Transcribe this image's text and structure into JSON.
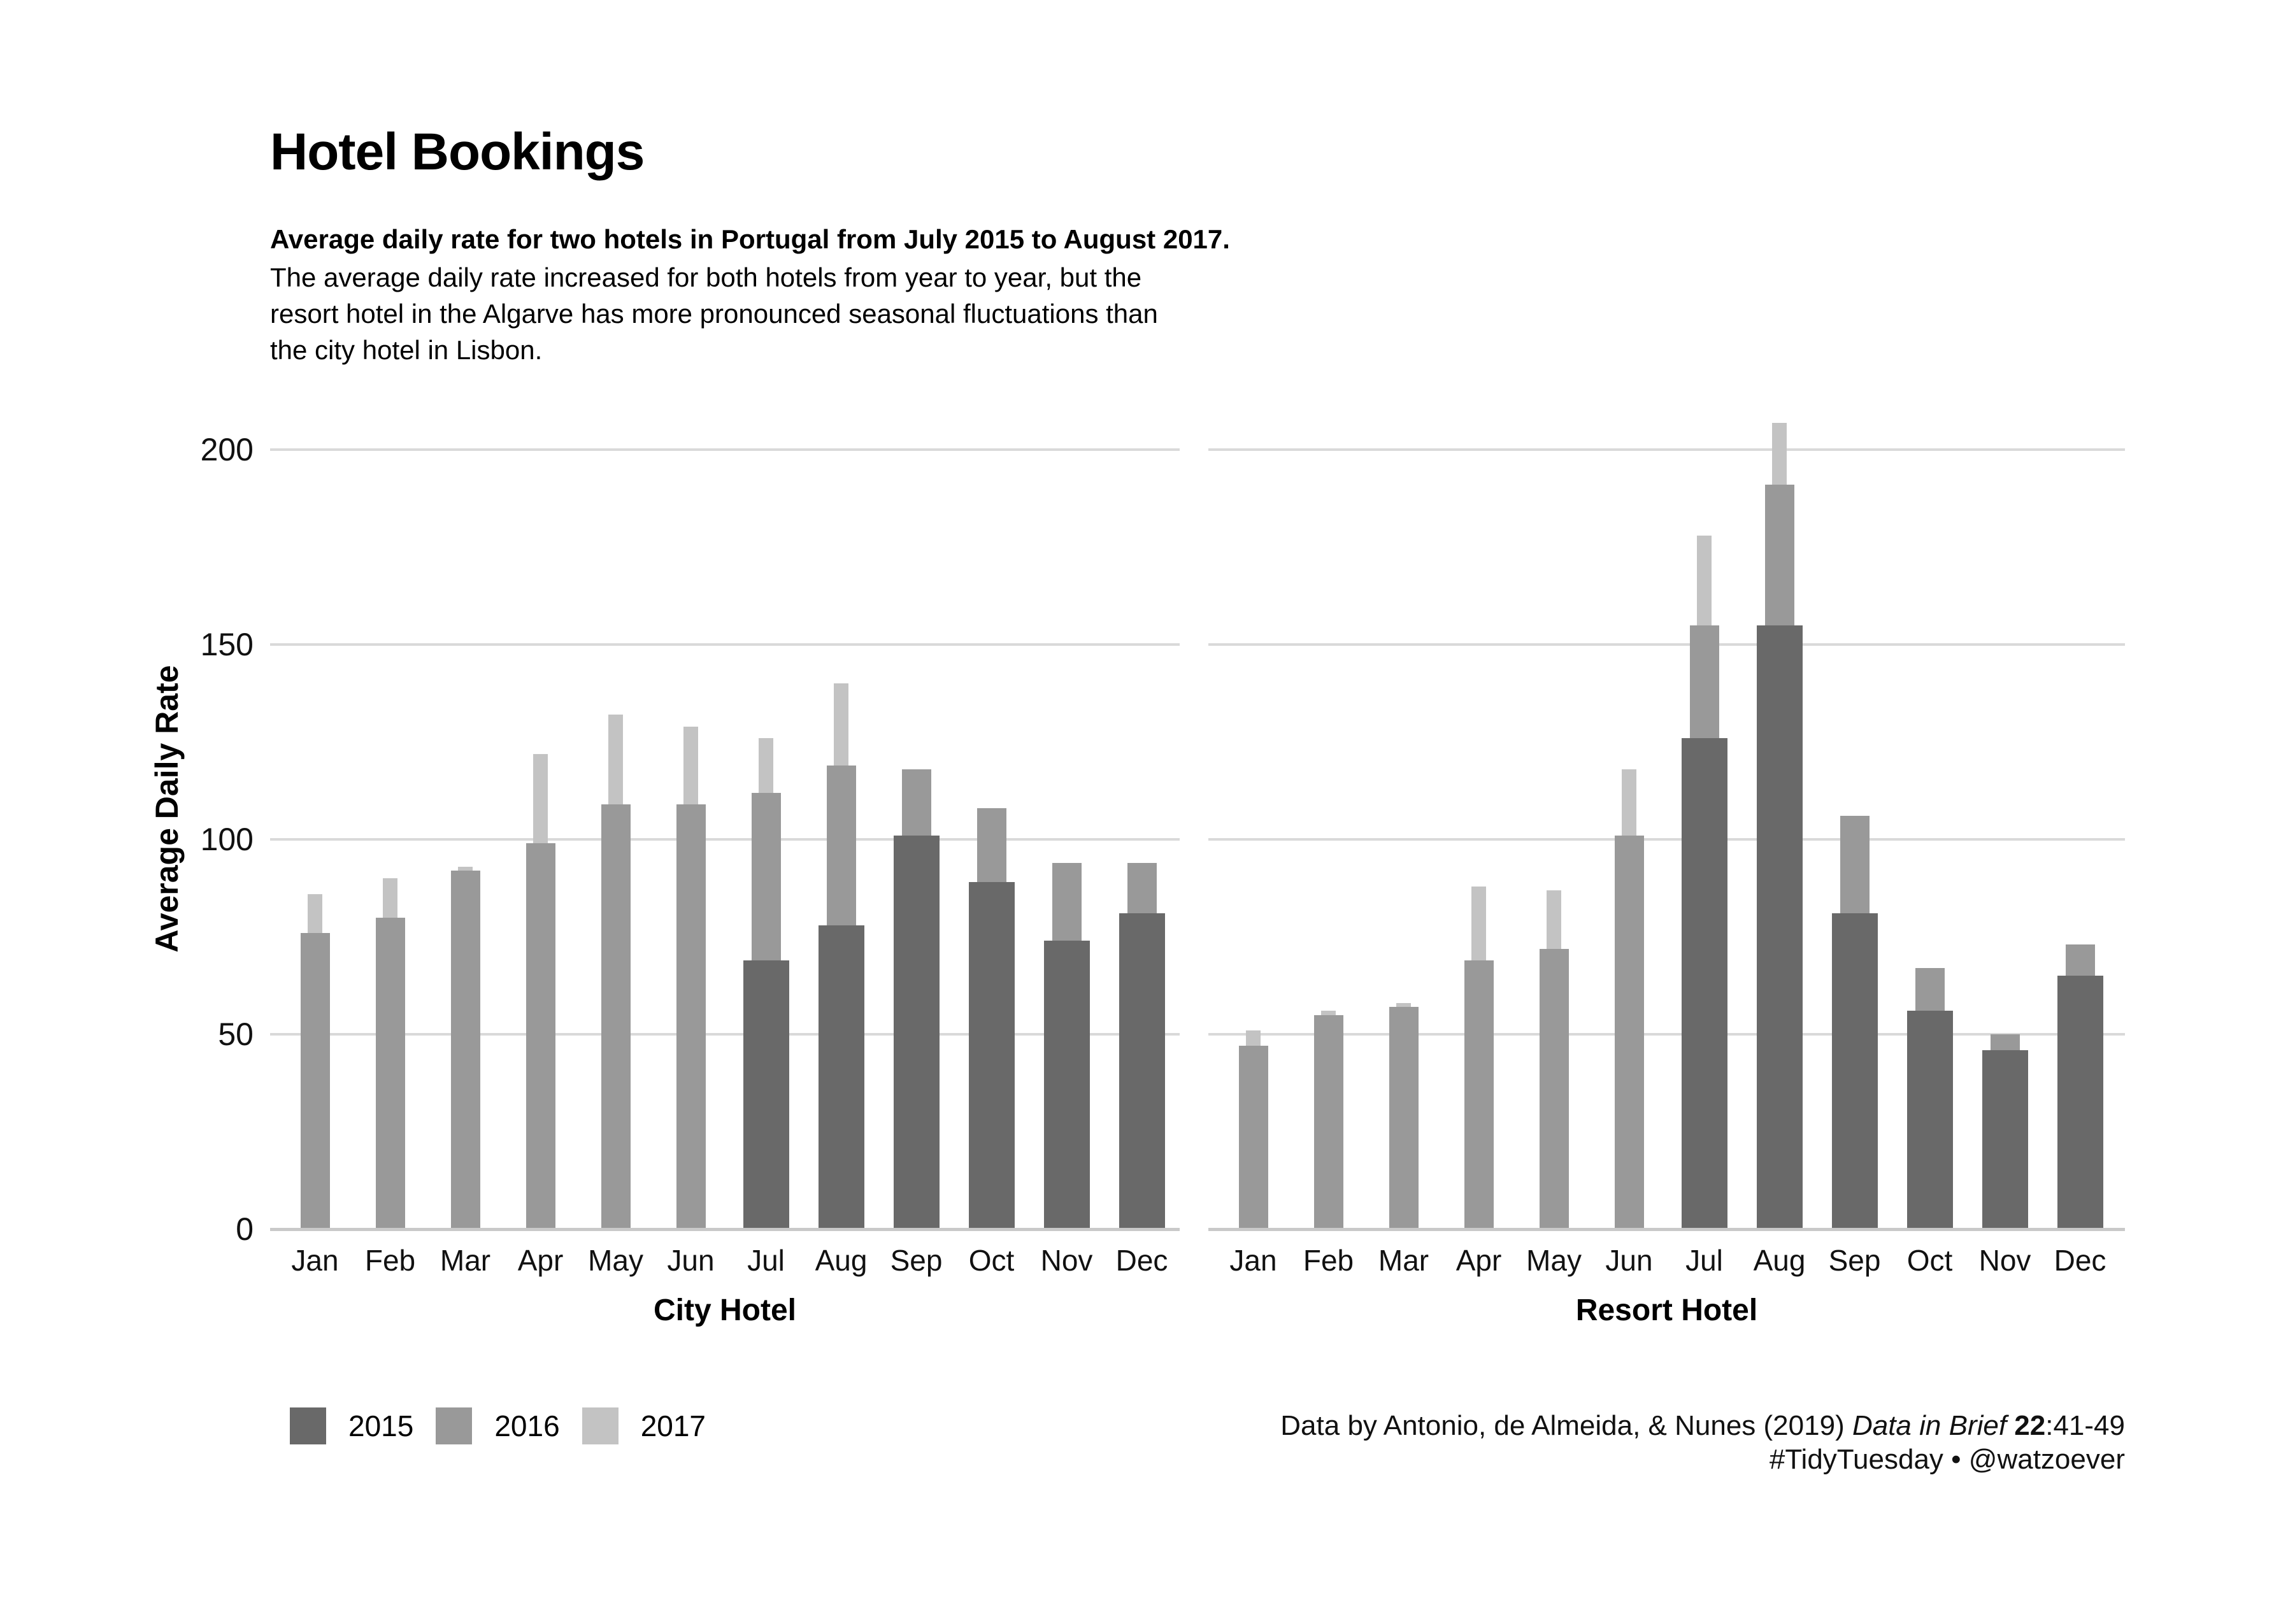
{
  "header": {
    "title": "Hotel Bookings",
    "subtitle_bold": "Average daily rate for two hotels in Portugal from July 2015 to August 2017.",
    "subtitle_lines": [
      "The average daily rate increased for both hotels from year to year, but the",
      "resort hotel in the Algarve has more pronounced seasonal fluctuations than",
      "the city hotel in Lisbon."
    ]
  },
  "chart_data": {
    "type": "bar",
    "variant": "faceted two-panel, overlaid bars per year (narrower bar = later year, drawn behind)",
    "categories": [
      "Jan",
      "Feb",
      "Mar",
      "Apr",
      "May",
      "Jun",
      "Jul",
      "Aug",
      "Sep",
      "Oct",
      "Nov",
      "Dec"
    ],
    "ylabel": "Average Daily Rate",
    "ylim": [
      0,
      210
    ],
    "yticks": [
      0,
      50,
      100,
      150,
      200
    ],
    "grid": "horizontal gridlines at 50/100/150/200",
    "legend_position": "bottom-left",
    "series_colors": {
      "2015": "#696969",
      "2016": "#999999",
      "2017": "#c3c3c3"
    },
    "panels": [
      {
        "title": "City Hotel",
        "series": [
          {
            "name": "2015",
            "values": [
              null,
              null,
              null,
              null,
              null,
              null,
              69,
              78,
              101,
              89,
              74,
              81
            ]
          },
          {
            "name": "2016",
            "values": [
              76,
              80,
              92,
              99,
              109,
              109,
              112,
              119,
              118,
              108,
              94,
              94
            ]
          },
          {
            "name": "2017",
            "values": [
              86,
              90,
              93,
              122,
              132,
              129,
              126,
              140,
              null,
              null,
              null,
              null
            ]
          }
        ]
      },
      {
        "title": "Resort Hotel",
        "series": [
          {
            "name": "2015",
            "values": [
              null,
              null,
              null,
              null,
              null,
              null,
              126,
              155,
              81,
              56,
              46,
              65
            ]
          },
          {
            "name": "2016",
            "values": [
              47,
              55,
              57,
              69,
              72,
              101,
              155,
              191,
              106,
              67,
              50,
              73
            ]
          },
          {
            "name": "2017",
            "values": [
              51,
              56,
              58,
              88,
              87,
              118,
              178,
              207,
              null,
              null,
              null,
              null
            ]
          }
        ]
      }
    ]
  },
  "legend": {
    "items": [
      {
        "label": "2015",
        "color": "#696969"
      },
      {
        "label": "2016",
        "color": "#999999"
      },
      {
        "label": "2017",
        "color": "#c3c3c3"
      }
    ]
  },
  "caption": {
    "line1_prefix": "Data by Antonio, de Almeida, & Nunes (2019) ",
    "line1_italic": "Data in Brief",
    "line1_bold": " 22",
    "line1_suffix": ":41-49",
    "line2": "#TidyTuesday • @watzoever"
  }
}
